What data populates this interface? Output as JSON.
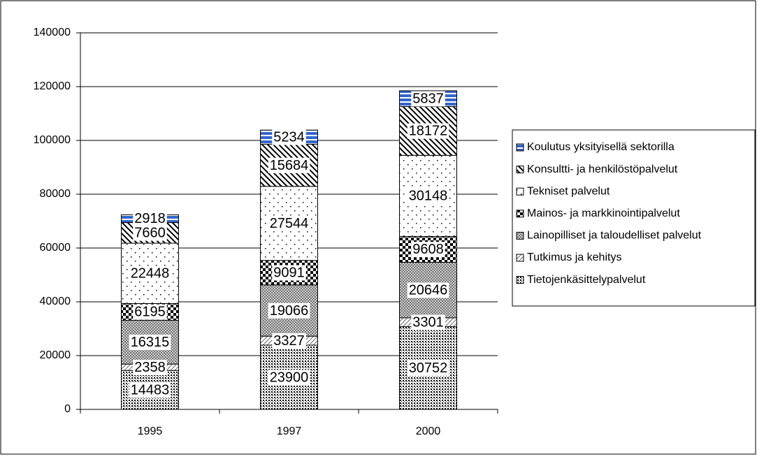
{
  "chart_data": {
    "type": "stacked-bar",
    "categories": [
      "1995",
      "1997",
      "2000"
    ],
    "series": [
      {
        "name": "Tietojenkäsittelypalvelut",
        "color": "#000000",
        "pattern": "dense-dots",
        "values": [
          14483,
          23900,
          30752
        ]
      },
      {
        "name": "Tutkimus ja kehitys",
        "color": "#000000",
        "pattern": "light-diagonal",
        "values": [
          2358,
          3327,
          3301
        ]
      },
      {
        "name": "Lainopilliset ja taloudelliset palvelut",
        "color": "#000000",
        "pattern": "small-check",
        "values": [
          16315,
          19066,
          20646
        ]
      },
      {
        "name": "Mainos- ja markkinointipalvelut",
        "color": "#000000",
        "pattern": "large-check",
        "values": [
          6195,
          9091,
          9608
        ]
      },
      {
        "name": "Tekniset palvelut",
        "color": "#000000",
        "pattern": "sparse-dots",
        "values": [
          22448,
          27544,
          30148
        ]
      },
      {
        "name": "Konsultti- ja henkilöstöpalvelut",
        "color": "#000000",
        "pattern": "wide-diagonal",
        "values": [
          7660,
          15684,
          18172
        ]
      },
      {
        "name": "Koulutus yksityisellä sektorilla",
        "color": "#3366cc",
        "pattern": "horizontal",
        "values": [
          2918,
          5234,
          5837
        ]
      }
    ],
    "ylim": [
      0,
      140000
    ],
    "yticks": [
      0,
      20000,
      40000,
      60000,
      80000,
      100000,
      120000,
      140000
    ],
    "grid": true,
    "legend": "right"
  }
}
